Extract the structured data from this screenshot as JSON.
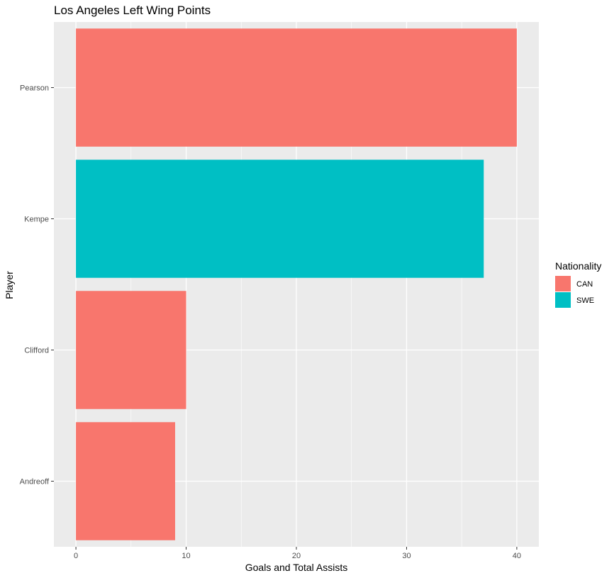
{
  "chart_data": {
    "type": "bar",
    "orientation": "horizontal",
    "title": "Los Angeles Left Wing Points",
    "xlabel": "Goals and Total Assists",
    "ylabel": "Player",
    "categories": [
      "Pearson",
      "Kempe",
      "Clifford",
      "Andreoff"
    ],
    "values": [
      40,
      37,
      10,
      9
    ],
    "groups": [
      "CAN",
      "SWE",
      "CAN",
      "CAN"
    ],
    "xlim": [
      -2,
      42
    ],
    "xticks": [
      0,
      10,
      20,
      30,
      40
    ],
    "grid": true,
    "legend": {
      "title": "Nationality",
      "placement": "right",
      "entries": [
        {
          "label": "CAN",
          "color": "#F8766D"
        },
        {
          "label": "SWE",
          "color": "#00BFC4"
        }
      ]
    },
    "colors": {
      "CAN": "#F8766D",
      "SWE": "#00BFC4"
    }
  }
}
